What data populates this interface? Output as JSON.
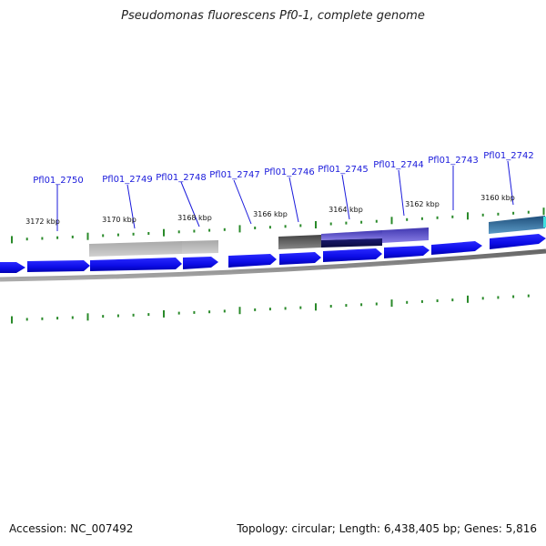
{
  "title": "Pseudomonas fluorescens Pf0-1, complete genome",
  "footer": {
    "accession": "Accession: NC_007492",
    "summary": "Topology: circular; Length: 6,438,405 bp; Genes: 5,816"
  },
  "colors": {
    "cds": "#1010f0",
    "backbone": "#888888",
    "tick": "#2a8a2a",
    "label": "#1a1adb",
    "feature_gray": "#b0b0b0",
    "feature_dark": "#555555",
    "feature_purple": "#5a50c8",
    "feature_teal": "#2d6e99"
  },
  "scale_labels": [
    "3172 kbp",
    "3170 kbp",
    "3168 kbp",
    "3166 kbp",
    "3164 kbp",
    "3162 kbp",
    "3160 kbp"
  ],
  "gene_labels": [
    "Pfl01_2750",
    "Pfl01_2749",
    "Pfl01_2748",
    "Pfl01_2747",
    "Pfl01_2746",
    "Pfl01_2745",
    "Pfl01_2744",
    "Pfl01_2743",
    "Pfl01_2742"
  ]
}
